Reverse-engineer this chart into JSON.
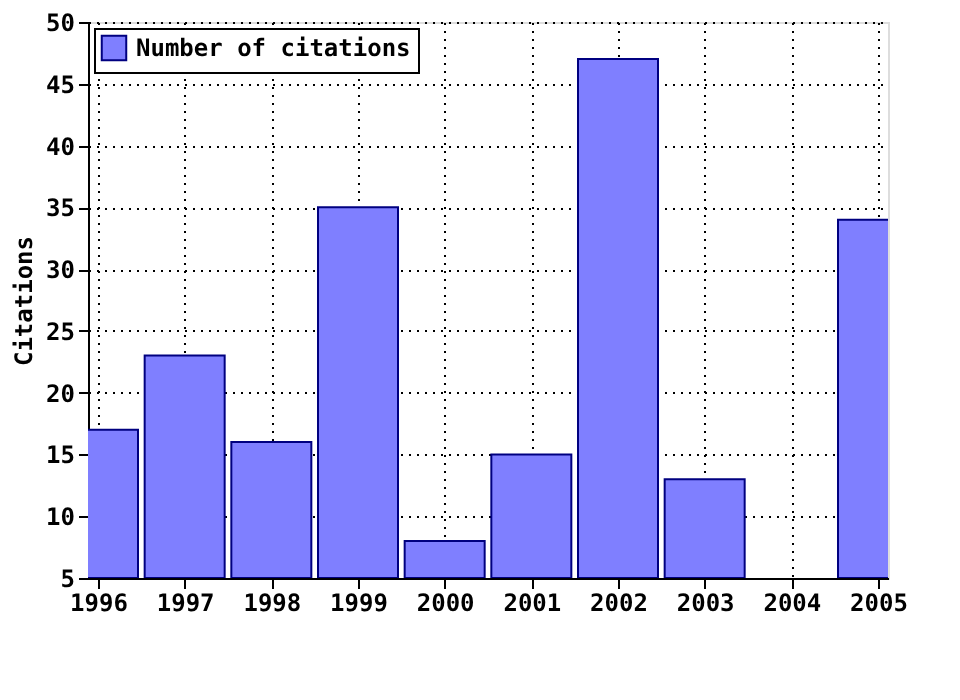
{
  "chart_data": {
    "type": "bar",
    "ylabel": "Citations",
    "x": [
      1996,
      1997,
      1998,
      1999,
      2000,
      2001,
      2002,
      2003,
      2004,
      2005
    ],
    "series": [
      {
        "name": "Number of citations",
        "color": "#7f7fff",
        "values": [
          17,
          23,
          16,
          35,
          8,
          15,
          47,
          13,
          null,
          34
        ]
      }
    ],
    "xlim": [
      1996,
      2005
    ],
    "xticks": [
      1996,
      1997,
      1998,
      1999,
      2000,
      2001,
      2002,
      2003,
      2004,
      2005
    ],
    "ylim": [
      5,
      50
    ],
    "yticks": [
      5,
      10,
      15,
      20,
      25,
      30,
      35,
      40,
      45,
      50
    ],
    "grid": true,
    "legend": "top left"
  }
}
